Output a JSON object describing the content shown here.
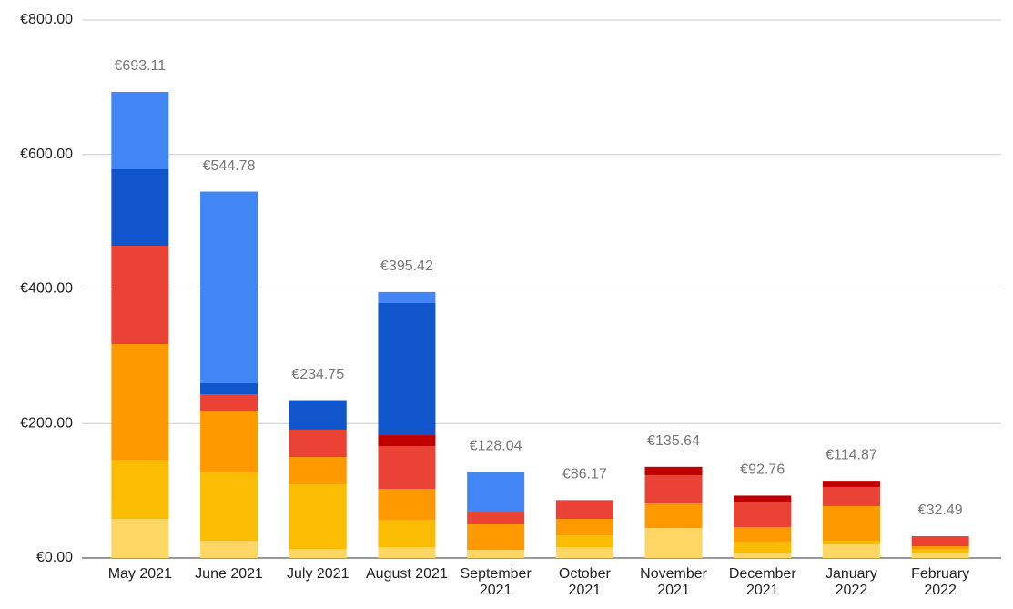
{
  "chart_data": {
    "type": "stacked-bar",
    "categories": [
      "May 2021",
      "June 2021",
      "July 2021",
      "August 2021",
      "September 2021",
      "October 2021",
      "November 2021",
      "December 2021",
      "January 2022",
      "February 2022"
    ],
    "series": [
      {
        "color": "#fdd663",
        "values": [
          58.2,
          25.7,
          13.5,
          16.2,
          12.2,
          16.2,
          44.7,
          8.1,
          20.3,
          8.1
        ]
      },
      {
        "color": "#fbbc04",
        "values": [
          88,
          101.5,
          96.1,
          40.7,
          0,
          17.6,
          0,
          16.3,
          5.4,
          5.4
        ]
      },
      {
        "color": "#ff9900",
        "values": [
          171.9,
          92.1,
          40.6,
          46,
          37.9,
          24.4,
          36.5,
          21.6,
          51.5,
          4.1
        ]
      },
      {
        "color": "#ea4335",
        "values": [
          146.2,
          24.3,
          40.7,
          63.6,
          18.9,
          28,
          42,
          37.9,
          28.4,
          14.9
        ]
      },
      {
        "color": "#c00000",
        "values": [
          0,
          0,
          0,
          16.2,
          0,
          0,
          12.4,
          8.9,
          9.3,
          0
        ]
      },
      {
        "color": "#1155cc",
        "values": [
          113.7,
          16.3,
          43.9,
          196.3,
          0,
          0,
          0,
          0,
          0,
          0
        ]
      },
      {
        "color": "#4285f4",
        "values": [
          115.1,
          284.9,
          0,
          16.4,
          59,
          0,
          0,
          0,
          0,
          0
        ]
      }
    ],
    "totals": {
      "values": [
        693.11,
        544.78,
        234.75,
        395.42,
        128.04,
        86.17,
        135.64,
        92.76,
        114.87,
        32.49
      ],
      "value_labels": [
        "€693.11",
        "€544.78",
        "€234.75",
        "€395.42",
        "€128.04",
        "€86.17",
        "€135.64",
        "€92.76",
        "€114.87",
        "€32.49"
      ]
    },
    "ylim": [
      0,
      800
    ],
    "yticks": [
      {
        "value": 0,
        "label": "€0.00"
      },
      {
        "value": 200,
        "label": "€200.00"
      },
      {
        "value": 400,
        "label": "€400.00"
      },
      {
        "value": 600,
        "label": "€600.00"
      },
      {
        "value": 800,
        "label": "€800.00"
      }
    ],
    "grid": true
  }
}
